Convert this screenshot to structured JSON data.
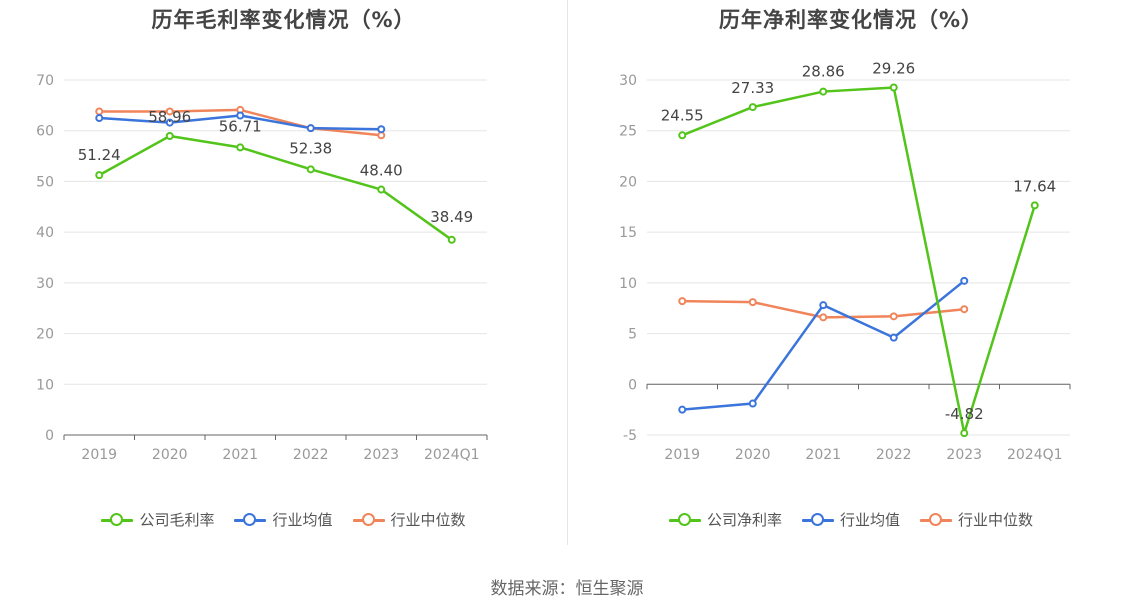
{
  "source": "数据来源：恒生聚源",
  "chart_data": [
    {
      "id": "gross",
      "type": "line",
      "title": "历年毛利率变化情况（%）",
      "categories": [
        "2019",
        "2020",
        "2021",
        "2022",
        "2023",
        "2024Q1"
      ],
      "ylim": [
        0,
        70
      ],
      "yticks": [
        0,
        10,
        20,
        30,
        40,
        50,
        60,
        70
      ],
      "grid": true,
      "legend_position": "bottom",
      "series": [
        {
          "name": "公司毛利率",
          "color": "#52c41a",
          "values": [
            51.24,
            58.96,
            56.71,
            52.38,
            48.4,
            38.49
          ],
          "labels": [
            "51.24",
            "58.96",
            "56.71",
            "52.38",
            "48.40",
            "38.49"
          ]
        },
        {
          "name": "行业均值",
          "color": "#3b74db",
          "values": [
            62.5,
            61.6,
            63.0,
            60.5,
            60.3,
            null
          ]
        },
        {
          "name": "行业中位数",
          "color": "#f0845a",
          "values": [
            63.8,
            63.8,
            64.1,
            60.5,
            59.1,
            null
          ]
        }
      ]
    },
    {
      "id": "net",
      "type": "line",
      "title": "历年净利率变化情况（%）",
      "categories": [
        "2019",
        "2020",
        "2021",
        "2022",
        "2023",
        "2024Q1"
      ],
      "ylim": [
        -5,
        30
      ],
      "yticks": [
        -5,
        0,
        5,
        10,
        15,
        20,
        25,
        30
      ],
      "grid": true,
      "legend_position": "bottom",
      "series": [
        {
          "name": "公司净利率",
          "color": "#52c41a",
          "values": [
            24.55,
            27.33,
            28.86,
            29.26,
            -4.82,
            17.64
          ],
          "labels": [
            "24.55",
            "27.33",
            "28.86",
            "29.26",
            "-4.82",
            "17.64"
          ]
        },
        {
          "name": "行业均值",
          "color": "#3b74db",
          "values": [
            -2.5,
            -1.9,
            7.8,
            4.6,
            10.2,
            null
          ]
        },
        {
          "name": "行业中位数",
          "color": "#f0845a",
          "values": [
            8.2,
            8.1,
            6.6,
            6.7,
            7.4,
            null
          ]
        }
      ]
    }
  ]
}
